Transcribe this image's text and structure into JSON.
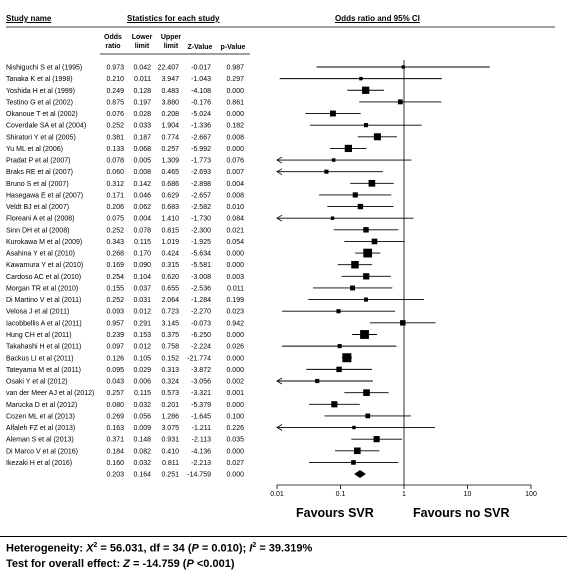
{
  "headers": {
    "study": "Study name",
    "statistics": "Statistics for each study",
    "odds_ci": "Odds ratio and 95% CI",
    "col_or": "Odds ratio",
    "col_lower": "Lower limit",
    "col_upper": "Upper limit",
    "col_z": "Z-Value",
    "col_p": "p-Value"
  },
  "favours_left": "Favours SVR",
  "favours_right": "Favours no SVR",
  "footer": {
    "heterogeneity_prefix": "Heterogeneity: ",
    "heterogeneity_x2": "X",
    "heterogeneity_x2_sup": "2",
    "heterogeneity_x2_value": " = 56.031, df = 34 (",
    "heterogeneity_p_label": "P",
    "heterogeneity_p_value": " = 0.010); ",
    "heterogeneity_i": "I",
    "heterogeneity_i_sup": "2",
    "heterogeneity_i_value": " = 39.319%",
    "test_prefix": "Test for overall effect: ",
    "test_z_label": "Z",
    "test_z_value": " = -14.759 (",
    "test_p_label": "P",
    "test_p_value": " <0.001)"
  },
  "chart_data": {
    "type": "forest",
    "x_scale": "log",
    "xlim": [
      0.01,
      100
    ],
    "x_ticks": [
      "0.01",
      "0.1",
      "1",
      "10",
      "100"
    ],
    "x_tick_values": [
      0.01,
      0.1,
      1,
      10,
      100
    ],
    "null_line": 1,
    "studies": [
      {
        "name": "Nishiguchi S et al (1995)",
        "or": "0.973",
        "lower": "0.042",
        "upper": "22.407",
        "z": "-0.017",
        "p": "0.987"
      },
      {
        "name": "Tanaka K et al (1998)",
        "or": "0.210",
        "lower": "0.011",
        "upper": "3.947",
        "z": "-1.043",
        "p": "0.297"
      },
      {
        "name": "Yoshida H et al (1999)",
        "or": "0.249",
        "lower": "0.128",
        "upper": "0.483",
        "z": "-4.108",
        "p": "0.000"
      },
      {
        "name": "Testino G et al (2002)",
        "or": "0.875",
        "lower": "0.197",
        "upper": "3.880",
        "z": "-0.176",
        "p": "0.861"
      },
      {
        "name": "Okanoue T et al (2002)",
        "or": "0.076",
        "lower": "0.028",
        "upper": "0.208",
        "z": "-5.024",
        "p": "0.000"
      },
      {
        "name": "Coverdale SA et al (2004)",
        "or": "0.252",
        "lower": "0.033",
        "upper": "1.904",
        "z": "-1.336",
        "p": "0.182"
      },
      {
        "name": "Shiratori Y et al (2005)",
        "or": "0.381",
        "lower": "0.187",
        "upper": "0.774",
        "z": "-2.667",
        "p": "0.008"
      },
      {
        "name": "Yu ML et al (2006)",
        "or": "0.133",
        "lower": "0.068",
        "upper": "0.257",
        "z": "-5.992",
        "p": "0.000"
      },
      {
        "name": "Pradat P et al (2007)",
        "or": "0.078",
        "lower": "0.005",
        "upper": "1.309",
        "z": "-1.773",
        "p": "0.076"
      },
      {
        "name": "Braks RE et al (2007)",
        "or": "0.060",
        "lower": "0.008",
        "upper": "0.465",
        "z": "-2.693",
        "p": "0.007"
      },
      {
        "name": "Bruno S et al (2007)",
        "or": "0.312",
        "lower": "0.142",
        "upper": "0.686",
        "z": "-2.898",
        "p": "0.004"
      },
      {
        "name": "Hasegawa E et al (2007)",
        "or": "0.171",
        "lower": "0.046",
        "upper": "0.629",
        "z": "-2.657",
        "p": "0.008"
      },
      {
        "name": "Veldt BJ et al (2007)",
        "or": "0.206",
        "lower": "0.062",
        "upper": "0.683",
        "z": "-2.582",
        "p": "0.010"
      },
      {
        "name": "Floreani A et al (2008)",
        "or": "0.075",
        "lower": "0.004",
        "upper": "1.410",
        "z": "-1.730",
        "p": "0.084"
      },
      {
        "name": "Sinn DH et al (2008)",
        "or": "0.252",
        "lower": "0.078",
        "upper": "0.815",
        "z": "-2.300",
        "p": "0.021"
      },
      {
        "name": "Kurokawa M et al (2009)",
        "or": "0.343",
        "lower": "0.115",
        "upper": "1.019",
        "z": "-1.925",
        "p": "0.054"
      },
      {
        "name": "Asahina Y et al (2010)",
        "or": "0.268",
        "lower": "0.170",
        "upper": "0.424",
        "z": "-5.634",
        "p": "0.000"
      },
      {
        "name": "Kawamura Y et al (2010)",
        "or": "0.169",
        "lower": "0.090",
        "upper": "0.315",
        "z": "-5.581",
        "p": "0.000"
      },
      {
        "name": "Cardoso AC et al (2010)",
        "or": "0.254",
        "lower": "0.104",
        "upper": "0.620",
        "z": "-3.008",
        "p": "0.003"
      },
      {
        "name": "Morgan TR et al (2010)",
        "or": "0.155",
        "lower": "0.037",
        "upper": "0.655",
        "z": "-2.536",
        "p": "0.011"
      },
      {
        "name": "Di Martino V et al (2011)",
        "or": "0.252",
        "lower": "0.031",
        "upper": "2.064",
        "z": "-1.284",
        "p": "0.199"
      },
      {
        "name": "Velosa J et al (2011)",
        "or": "0.093",
        "lower": "0.012",
        "upper": "0.723",
        "z": "-2.270",
        "p": "0.023"
      },
      {
        "name": "Iacobbellis A et al (2011)",
        "or": "0.957",
        "lower": "0.291",
        "upper": "3.145",
        "z": "-0.073",
        "p": "0.942"
      },
      {
        "name": "Hung CH et al (2011)",
        "or": "0.239",
        "lower": "0.153",
        "upper": "0.375",
        "z": "-6.250",
        "p": "0.000"
      },
      {
        "name": "Takahashi H et al (2011)",
        "or": "0.097",
        "lower": "0.012",
        "upper": "0.758",
        "z": "-2.224",
        "p": "0.026"
      },
      {
        "name": "Backus LI et al (2011)",
        "or": "0.126",
        "lower": "0.105",
        "upper": "0.152",
        "z": "-21.774",
        "p": "0.000"
      },
      {
        "name": "Tateyama M et al (2011)",
        "or": "0.095",
        "lower": "0.029",
        "upper": "0.313",
        "z": "-3.872",
        "p": "0.000"
      },
      {
        "name": "Osaki Y et al (2012)",
        "or": "0.043",
        "lower": "0.006",
        "upper": "0.324",
        "z": "-3.056",
        "p": "0.002"
      },
      {
        "name": "van der Meer AJ et al (2012)",
        "or": "0.257",
        "lower": "0.115",
        "upper": "0.573",
        "z": "-3.321",
        "p": "0.001"
      },
      {
        "name": "Marucka D et al (2012)",
        "or": "0.080",
        "lower": "0.032",
        "upper": "0.201",
        "z": "-5.379",
        "p": "0.000"
      },
      {
        "name": "Cozen ML et al (2013)",
        "or": "0.269",
        "lower": "0.056",
        "upper": "1.286",
        "z": "-1.645",
        "p": "0.100"
      },
      {
        "name": "Alfaleh FZ et al (2013)",
        "or": "0.163",
        "lower": "0.009",
        "upper": "3.075",
        "z": "-1.211",
        "p": "0.226"
      },
      {
        "name": "Aleman S et al (2013)",
        "or": "0.371",
        "lower": "0.148",
        "upper": "0.931",
        "z": "-2.113",
        "p": "0.035"
      },
      {
        "name": "Di Marco V et al (2016)",
        "or": "0.184",
        "lower": "0.082",
        "upper": "0.410",
        "z": "-4.136",
        "p": "0.000"
      },
      {
        "name": "Ikezaki H et al (2016)",
        "or": "0.160",
        "lower": "0.032",
        "upper": "0.811",
        "z": "-2.213",
        "p": "0.027"
      }
    ],
    "pooled": {
      "or": "0.203",
      "lower": "0.164",
      "upper": "0.251",
      "z": "-14.759",
      "p": "0.000"
    }
  }
}
